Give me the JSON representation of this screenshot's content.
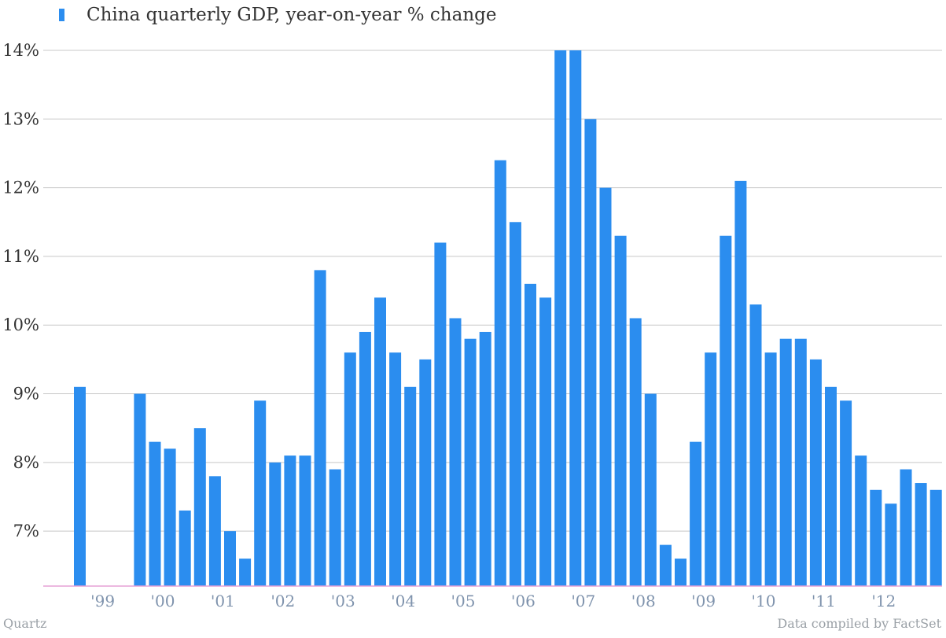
{
  "chart_data": {
    "type": "bar",
    "legend": "China quarterly GDP, year-on-year % change",
    "legend_position": "top-left",
    "grid": true,
    "ylim": [
      6.2,
      14
    ],
    "y_ticks": [
      "7%",
      "8%",
      "9%",
      "10%",
      "11%",
      "12%",
      "13%",
      "14%"
    ],
    "y_tick_values": [
      7,
      8,
      9,
      10,
      11,
      12,
      13,
      14
    ],
    "x_tick_labels": [
      "'99",
      "'00",
      "'01",
      "'02",
      "'03",
      "'04",
      "'05",
      "'06",
      "'07",
      "'08",
      "'09",
      "'10",
      "'11",
      "'12"
    ],
    "categories": [
      "1998 Q4",
      "1999 Q1",
      "1999 Q2",
      "1999 Q3",
      "1999 Q4",
      "2000 Q1",
      "2000 Q2",
      "2000 Q3",
      "2000 Q4",
      "2001 Q1",
      "2001 Q2",
      "2001 Q3",
      "2001 Q4",
      "2002 Q1",
      "2002 Q2",
      "2002 Q3",
      "2002 Q4",
      "2003 Q1",
      "2003 Q2",
      "2003 Q3",
      "2003 Q4",
      "2004 Q1",
      "2004 Q2",
      "2004 Q3",
      "2004 Q4",
      "2005 Q1",
      "2005 Q2",
      "2005 Q3",
      "2005 Q4",
      "2006 Q1",
      "2006 Q2",
      "2006 Q3",
      "2006 Q4",
      "2007 Q1",
      "2007 Q2",
      "2007 Q3",
      "2007 Q4",
      "2008 Q1",
      "2008 Q2",
      "2008 Q3",
      "2008 Q4",
      "2009 Q1",
      "2009 Q2",
      "2009 Q3",
      "2009 Q4",
      "2010 Q1",
      "2010 Q2",
      "2010 Q3",
      "2010 Q4",
      "2011 Q1",
      "2011 Q2",
      "2011 Q3",
      "2011 Q4",
      "2012 Q1",
      "2012 Q2",
      "2012 Q3",
      "2012 Q4",
      "2013 Q1"
    ],
    "values": [
      9.1,
      null,
      null,
      null,
      9.0,
      8.3,
      8.2,
      7.3,
      8.5,
      7.8,
      7.0,
      6.6,
      8.9,
      8.0,
      8.1,
      8.1,
      10.8,
      7.9,
      9.6,
      9.9,
      10.4,
      9.6,
      9.1,
      9.5,
      11.2,
      10.1,
      9.8,
      9.9,
      12.4,
      11.5,
      10.6,
      10.4,
      14.0,
      14.0,
      13.0,
      12.0,
      11.3,
      10.1,
      9.0,
      6.8,
      6.6,
      8.3,
      9.6,
      11.3,
      12.1,
      10.3,
      9.6,
      9.8,
      9.8,
      9.5,
      9.1,
      8.9,
      8.1,
      7.6,
      7.4,
      7.9,
      7.7,
      7.6
    ],
    "colors": {
      "bar": "#2b8def",
      "grid": "#c8c8c8",
      "baseline": "#e6a0d6",
      "ytick": "#333333",
      "xtick": "#7f93ad"
    }
  },
  "footer": {
    "source_left": "Quartz",
    "source_right": "Data compiled by FactSet"
  }
}
